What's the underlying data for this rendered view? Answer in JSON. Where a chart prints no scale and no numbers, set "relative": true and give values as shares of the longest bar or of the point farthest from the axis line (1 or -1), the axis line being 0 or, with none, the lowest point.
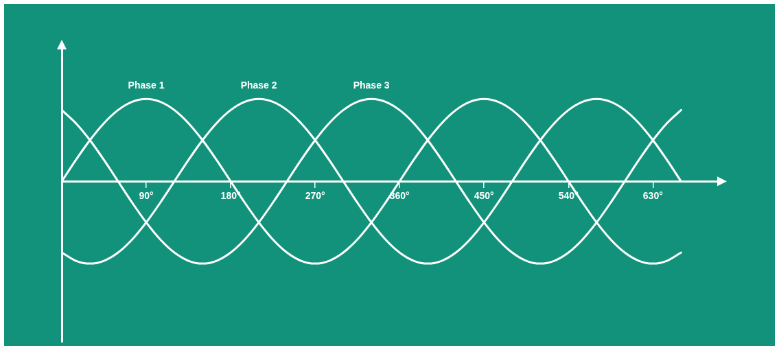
{
  "chart_data": {
    "type": "line",
    "relative": true,
    "legend": false,
    "marker": "none",
    "grid": false,
    "x": [
      0,
      15,
      30,
      45,
      60,
      75,
      90,
      105,
      120,
      135,
      150,
      165,
      180,
      195,
      210,
      225,
      240,
      255,
      270,
      285,
      300,
      315,
      330,
      345,
      360,
      375,
      390,
      405,
      420,
      435,
      450,
      465,
      480,
      495,
      510,
      525,
      540,
      555,
      570,
      585,
      600,
      615,
      630,
      645,
      660
    ],
    "xlim": [
      0,
      700
    ],
    "xticks": [
      {
        "value": 90,
        "label": "90°"
      },
      {
        "value": 180,
        "label": "180°"
      },
      {
        "value": 270,
        "label": "270°"
      },
      {
        "value": 360,
        "label": "360°"
      },
      {
        "value": 450,
        "label": "450°"
      },
      {
        "value": 540,
        "label": "540°"
      },
      {
        "value": 630,
        "label": "630°"
      }
    ],
    "series": [
      {
        "name": "Phase 1",
        "color": "#ffffff",
        "values": [
          0,
          0.259,
          0.5,
          0.707,
          0.866,
          0.966,
          1,
          0.966,
          0.866,
          0.707,
          0.5,
          0.259,
          0,
          -0.259,
          -0.5,
          -0.707,
          -0.866,
          -0.966,
          -1,
          -0.966,
          -0.866,
          -0.707,
          -0.5,
          -0.259,
          0,
          0.259,
          0.5,
          0.707,
          0.866,
          0.966,
          1,
          0.966,
          0.866,
          0.707,
          0.5,
          0.259,
          0,
          -0.259,
          -0.5,
          -0.707,
          -0.866,
          -0.966,
          -1,
          -0.966,
          -0.866
        ]
      },
      {
        "name": "Phase 2",
        "color": "#ffffff",
        "values": [
          -0.866,
          -0.966,
          -1,
          -0.966,
          -0.866,
          -0.707,
          -0.5,
          -0.259,
          0,
          0.259,
          0.5,
          0.707,
          0.866,
          0.966,
          1,
          0.966,
          0.866,
          0.707,
          0.5,
          0.259,
          0,
          -0.259,
          -0.5,
          -0.707,
          -0.866,
          -0.966,
          -1,
          -0.966,
          -0.866,
          -0.707,
          -0.5,
          -0.259,
          0,
          0.259,
          0.5,
          0.707,
          0.866,
          0.966,
          1,
          0.966,
          0.866,
          0.707,
          0.5,
          0.259,
          0
        ]
      },
      {
        "name": "Phase 3",
        "color": "#ffffff",
        "values": [
          0.866,
          0.707,
          0.5,
          0.259,
          0,
          -0.259,
          -0.5,
          -0.707,
          -0.866,
          -0.966,
          -1,
          -0.966,
          -0.866,
          -0.707,
          -0.5,
          -0.259,
          0,
          0.259,
          0.5,
          0.707,
          0.866,
          0.966,
          1,
          0.966,
          0.866,
          0.707,
          0.5,
          0.259,
          0,
          -0.259,
          -0.5,
          -0.707,
          -0.866,
          -0.966,
          -1,
          -0.966,
          -0.866,
          -0.707,
          -0.5,
          -0.259,
          0,
          0.259,
          0.5,
          0.707,
          0.866
        ]
      }
    ]
  }
}
